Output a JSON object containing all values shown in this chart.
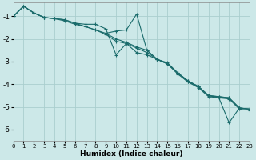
{
  "xlabel": "Humidex (Indice chaleur)",
  "bg_color": "#cce8e8",
  "grid_color": "#aacece",
  "line_color": "#1a6b6b",
  "xlim": [
    0,
    23
  ],
  "ylim": [
    -6.5,
    -0.4
  ],
  "yticks": [
    -6,
    -5,
    -4,
    -3,
    -2,
    -1
  ],
  "xticks": [
    0,
    1,
    2,
    3,
    4,
    5,
    6,
    7,
    8,
    9,
    10,
    11,
    12,
    13,
    14,
    15,
    16,
    17,
    18,
    19,
    20,
    21,
    22,
    23
  ],
  "series": [
    {
      "x": [
        0,
        1,
        2,
        3,
        4,
        5,
        6,
        7,
        8,
        9,
        10,
        11,
        12,
        13,
        14,
        15,
        16,
        17,
        18,
        19,
        20,
        21,
        22,
        23
      ],
      "y": [
        -1.0,
        -0.55,
        -0.85,
        -1.05,
        -1.1,
        -1.15,
        -1.3,
        -1.45,
        -1.6,
        -1.75,
        -2.0,
        -2.15,
        -2.35,
        -2.5,
        -2.9,
        -3.1,
        -3.5,
        -3.85,
        -4.1,
        -4.5,
        -4.55,
        -4.6,
        -5.05,
        -5.1
      ]
    },
    {
      "x": [
        9,
        10,
        11,
        12,
        13,
        14,
        15,
        16,
        17,
        18,
        19,
        20,
        21,
        22,
        23
      ],
      "y": [
        -1.75,
        -1.65,
        -1.6,
        -0.9,
        -2.5,
        -2.9,
        -3.05,
        -3.5,
        -3.9,
        -4.1,
        -4.5,
        -4.6,
        -5.7,
        -5.05,
        -5.1
      ]
    },
    {
      "x": [
        0,
        1,
        2,
        3,
        4,
        5,
        6,
        7,
        8,
        9,
        10,
        11,
        12,
        13,
        14,
        15,
        16,
        17,
        18,
        19,
        20,
        21,
        22,
        23
      ],
      "y": [
        -1.0,
        -0.55,
        -0.85,
        -1.05,
        -1.1,
        -1.15,
        -1.3,
        -1.35,
        -1.35,
        -1.55,
        -2.7,
        -2.2,
        -2.6,
        -2.7,
        -2.9,
        -3.1,
        -3.5,
        -3.85,
        -4.1,
        -4.5,
        -4.55,
        -4.6,
        -5.05,
        -5.1
      ]
    },
    {
      "x": [
        0,
        1,
        2,
        3,
        4,
        5,
        6,
        7,
        8,
        9,
        10,
        11,
        12,
        13,
        14,
        15,
        16,
        17,
        18,
        19,
        20,
        21,
        22,
        23
      ],
      "y": [
        -1.0,
        -0.55,
        -0.85,
        -1.05,
        -1.1,
        -1.2,
        -1.35,
        -1.45,
        -1.6,
        -1.8,
        -2.1,
        -2.2,
        -2.4,
        -2.6,
        -2.9,
        -3.1,
        -3.55,
        -3.9,
        -4.15,
        -4.55,
        -4.6,
        -4.65,
        -5.1,
        -5.15
      ]
    }
  ]
}
